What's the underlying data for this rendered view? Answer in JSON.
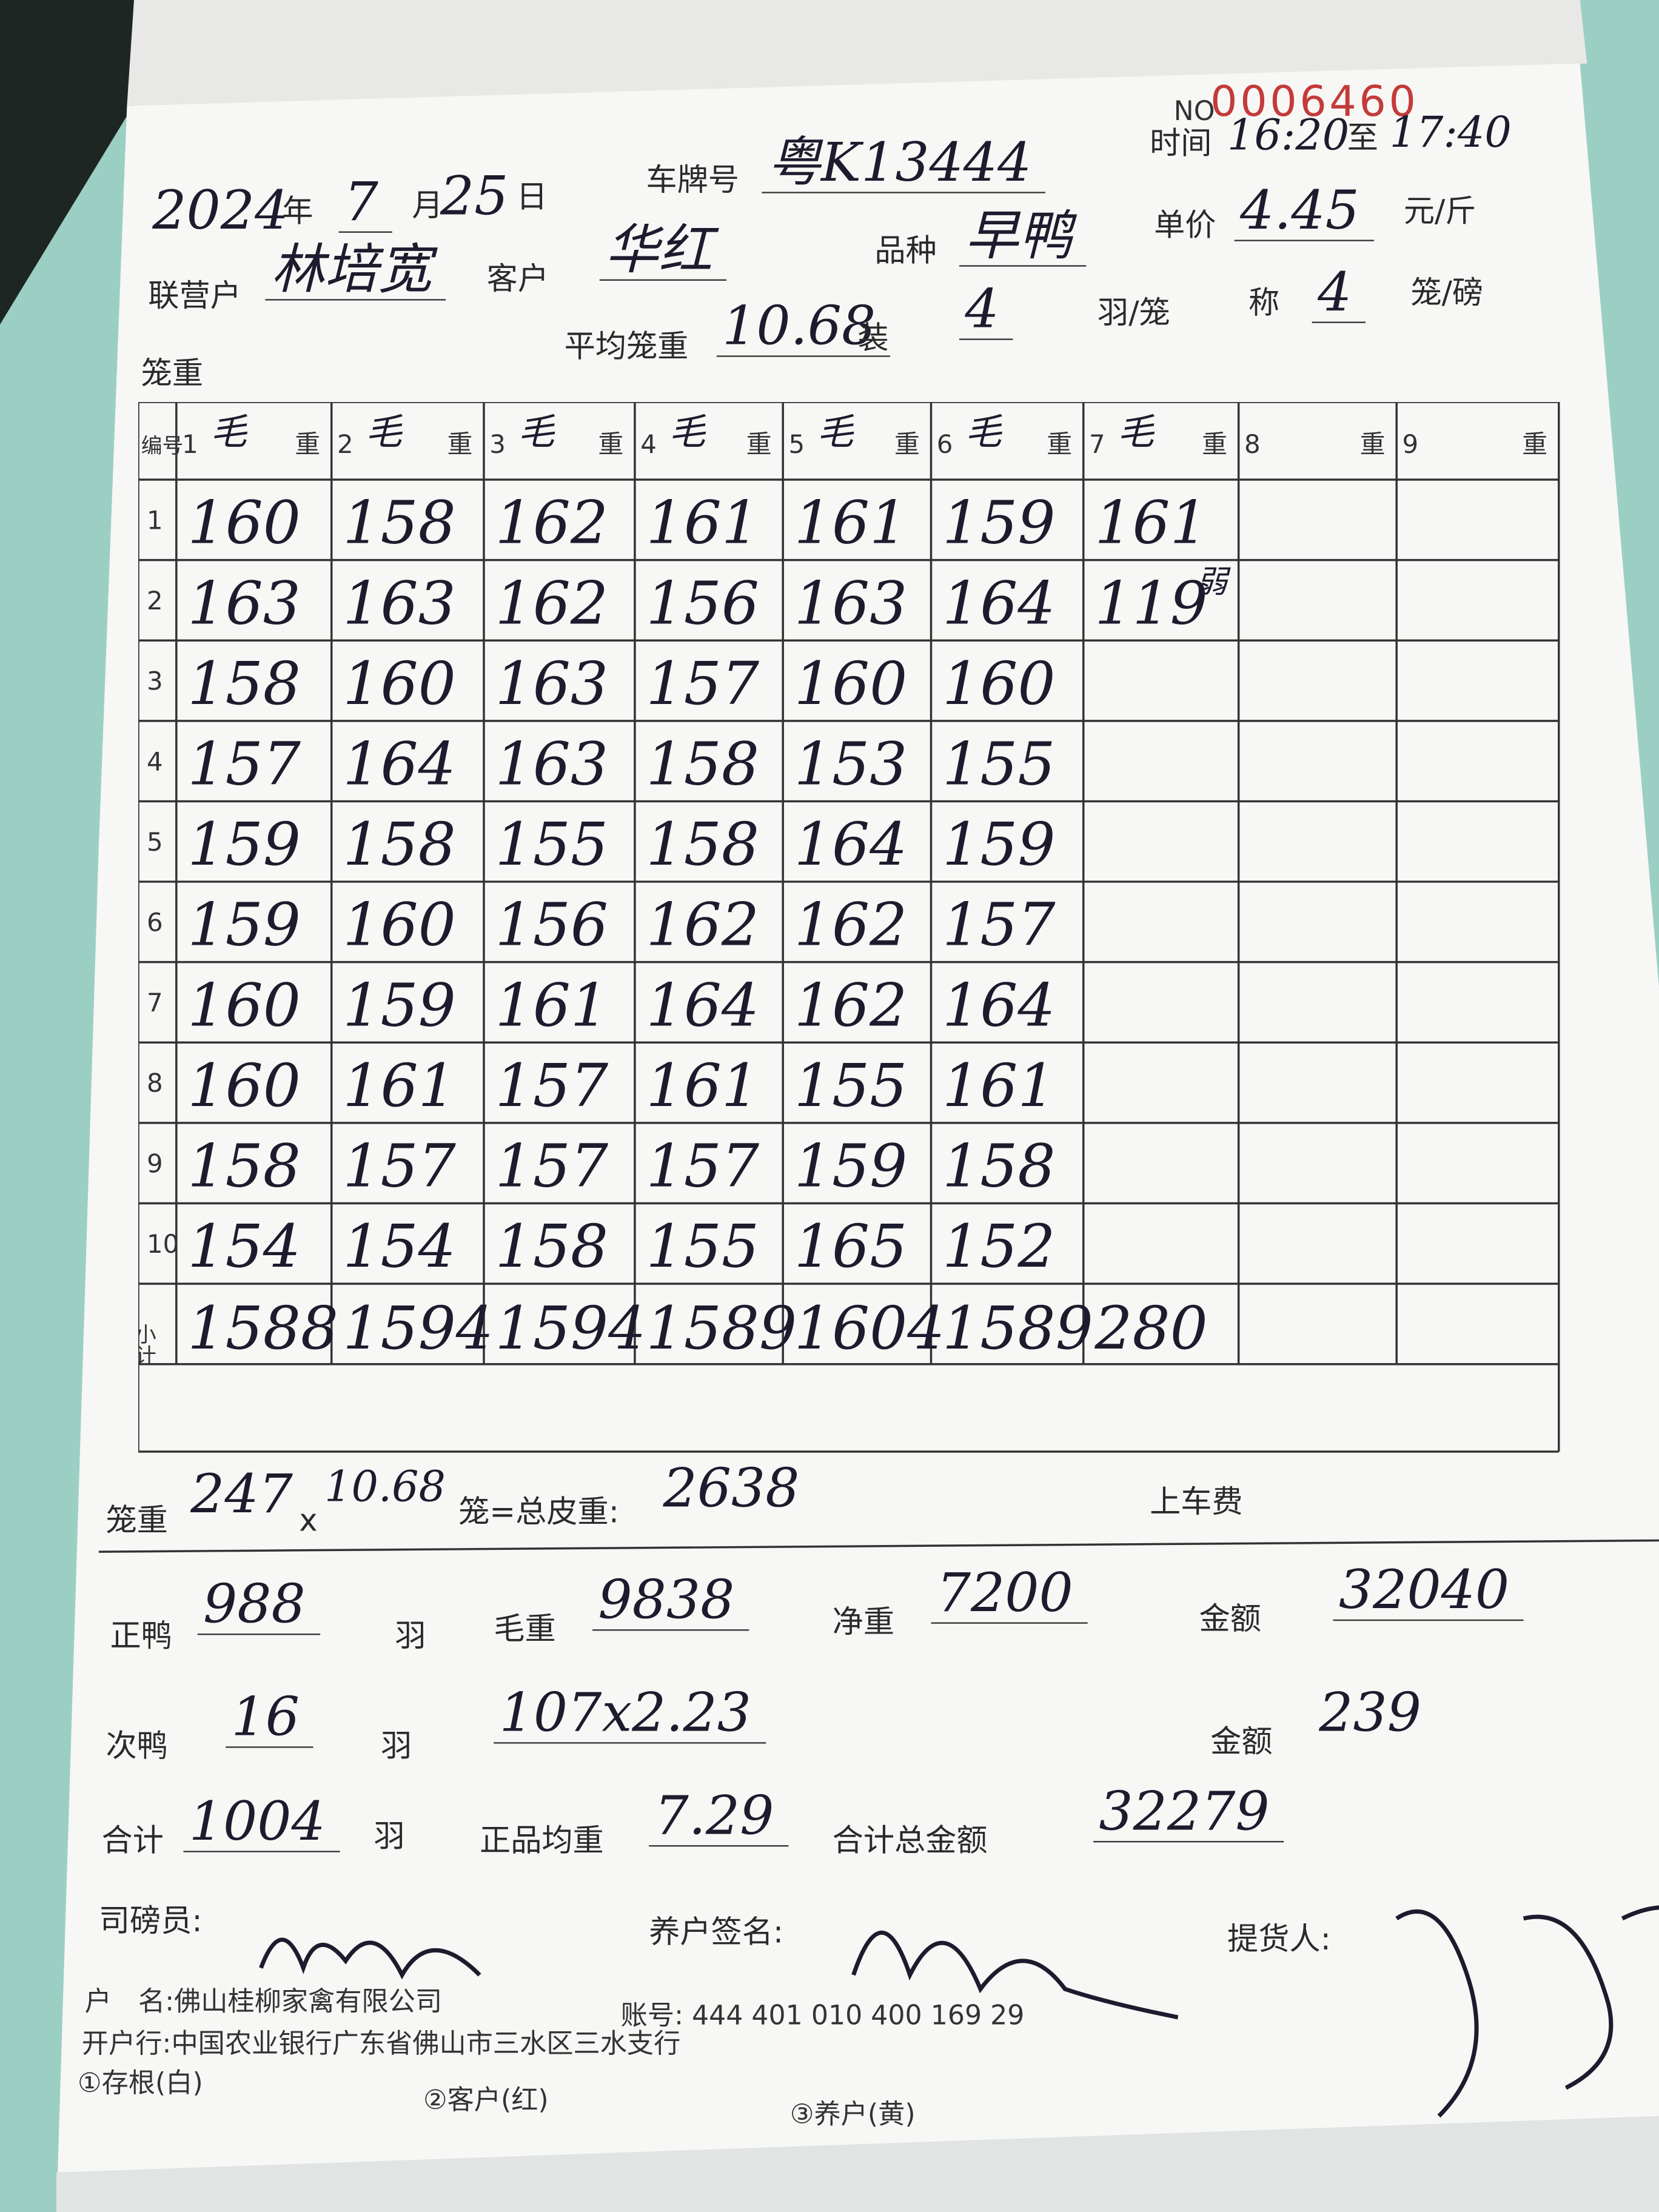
{
  "form": {
    "serial_label": "NO",
    "serial": "0006460",
    "date": {
      "year": "2024",
      "year_label": "年",
      "month": "7",
      "month_label": "月",
      "day": "25",
      "day_label": "日"
    },
    "plate_label": "车牌号",
    "plate": "粤K13444",
    "time_label": "时间",
    "time_from": "16:20",
    "time_to_label": "至",
    "time_to": "17:40",
    "unit_price_label": "单价",
    "unit_price": "4.45",
    "unit_price_unit": "元/斤",
    "partner_label": "联营户",
    "partner": "林培宽",
    "customer_label": "客户",
    "customer": "华红",
    "variety_label": "品种",
    "variety": "早鸭",
    "weigh_label": "称",
    "weigh": "4",
    "weigh_unit": "笼/磅",
    "cage_weight_label": "笼重",
    "avg_cage_label": "平均笼重",
    "avg_cage": "10.68",
    "load_label": "装",
    "load": "4",
    "load_unit": "羽/笼"
  },
  "table": {
    "id_label": "编号",
    "columns": [
      {
        "no": "1",
        "hw": "毛",
        "unit": "重"
      },
      {
        "no": "2",
        "hw": "毛",
        "unit": "重"
      },
      {
        "no": "3",
        "hw": "毛",
        "unit": "重"
      },
      {
        "no": "4",
        "hw": "毛",
        "unit": "重"
      },
      {
        "no": "5",
        "hw": "毛",
        "unit": "重"
      },
      {
        "no": "6",
        "hw": "毛",
        "unit": "重"
      },
      {
        "no": "7",
        "hw": "毛",
        "unit": "重"
      },
      {
        "no": "8",
        "unit": "重"
      },
      {
        "no": "9",
        "unit": "重"
      }
    ],
    "rows": [
      {
        "no": "1",
        "cells": [
          160,
          158,
          162,
          161,
          161,
          159,
          161
        ]
      },
      {
        "no": "2",
        "cells": [
          163,
          163,
          162,
          156,
          163,
          164,
          119
        ],
        "note": "弱"
      },
      {
        "no": "3",
        "cells": [
          158,
          160,
          163,
          157,
          160,
          160
        ]
      },
      {
        "no": "4",
        "cells": [
          157,
          164,
          163,
          158,
          153,
          155
        ]
      },
      {
        "no": "5",
        "cells": [
          159,
          158,
          155,
          158,
          164,
          159
        ]
      },
      {
        "no": "6",
        "cells": [
          159,
          160,
          156,
          162,
          162,
          157
        ]
      },
      {
        "no": "7",
        "cells": [
          160,
          159,
          161,
          164,
          162,
          164
        ]
      },
      {
        "no": "8",
        "cells": [
          160,
          161,
          157,
          161,
          155,
          161
        ]
      },
      {
        "no": "9",
        "cells": [
          158,
          157,
          157,
          157,
          159,
          158
        ]
      },
      {
        "no": "10",
        "cells": [
          154,
          154,
          158,
          155,
          165,
          152
        ]
      }
    ],
    "subtotal": {
      "label": "小计",
      "cells": [
        1588,
        1594,
        1594,
        1589,
        1604,
        1589,
        280
      ]
    }
  },
  "summary": {
    "cage_label": "笼重",
    "cages": "247",
    "times": "x",
    "cage_avg": "10.68",
    "tare_label": "笼=总皮重:",
    "tare": "2638",
    "loading_fee_label": "上车费",
    "good_label": "正鸭",
    "good": "988",
    "good_unit": "羽",
    "gross_label": "毛重",
    "gross": "9838",
    "net_label": "净重",
    "net": "7200",
    "amount_label": "金额",
    "amount": "32040",
    "sub_label": "次鸭",
    "sub": "16",
    "sub_unit": "羽",
    "sub_calc": "107x2.23",
    "sub_amount_label": "金额",
    "sub_amount": "239",
    "total_label": "合计",
    "total": "1004",
    "total_unit": "羽",
    "avg_label": "正品均重",
    "avg": "7.29",
    "total_amount_label": "合计总金额",
    "total_amount": "32279",
    "weigher_label": "司磅员:",
    "farmer_label": "养户签名:",
    "picker_label": "提货人:"
  },
  "footer": {
    "account_name": "户　名:佛山桂柳家禽有限公司",
    "account_no": "账号: 444 401 010 400 169 29",
    "bank": "开户行:中国农业银行广东省佛山市三水区三水支行",
    "copy1": "①存根(白)",
    "copy2": "②客户(红)",
    "copy3": "③养户(黄)"
  }
}
